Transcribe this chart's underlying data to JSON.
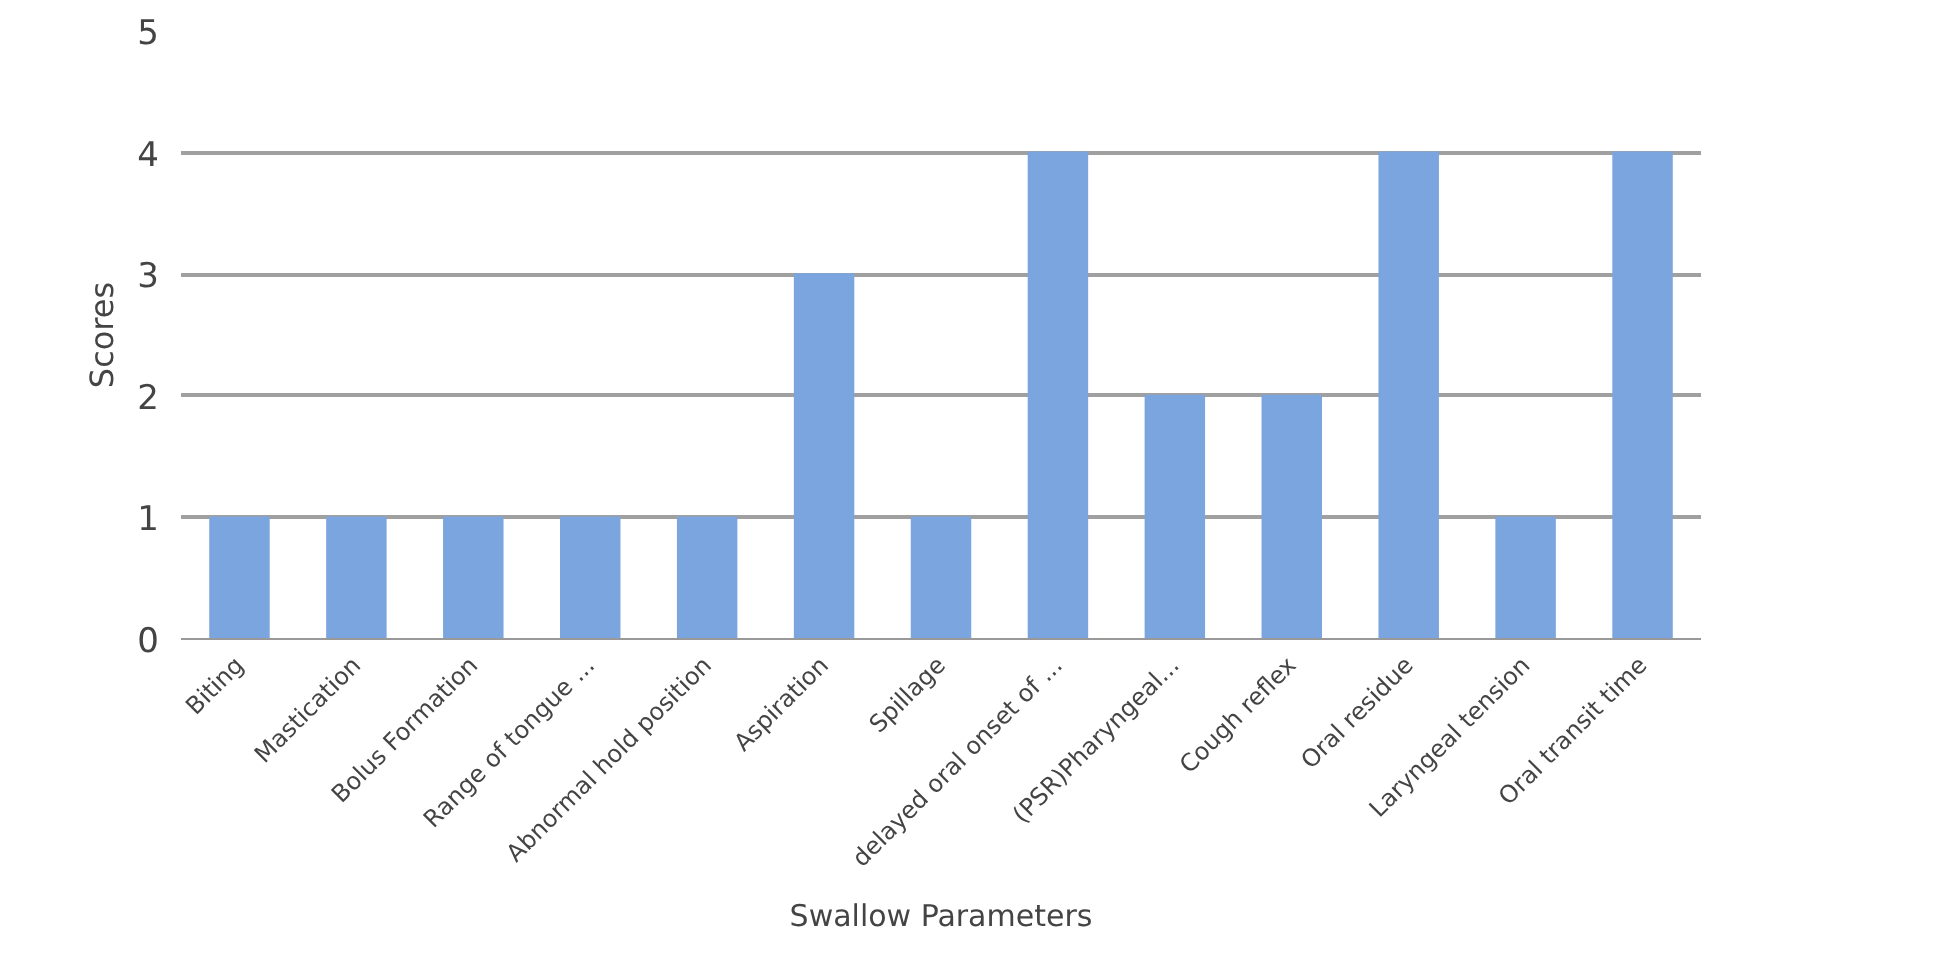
{
  "chart_data": {
    "type": "bar",
    "xlabel": "Swallow Parameters",
    "ylabel": "Scores",
    "categories": [
      "Biting",
      "Mastication",
      "Bolus Formation",
      "Range of tongue ...",
      "Abnormal hold position",
      "Aspiration",
      "Spillage",
      "delayed oral onset of ...",
      "(PSR)Pharyngeal...",
      "Cough reflex",
      "Oral residue",
      "Laryngeal tension",
      "Oral transit time"
    ],
    "values": [
      1,
      1,
      1,
      1,
      1,
      3,
      1,
      4,
      2,
      2,
      4,
      1,
      4
    ],
    "color": "#7ba5de",
    "ylim": [
      0,
      5
    ],
    "yticks": [
      0,
      1,
      2,
      3,
      4,
      5
    ],
    "grid": "y"
  }
}
